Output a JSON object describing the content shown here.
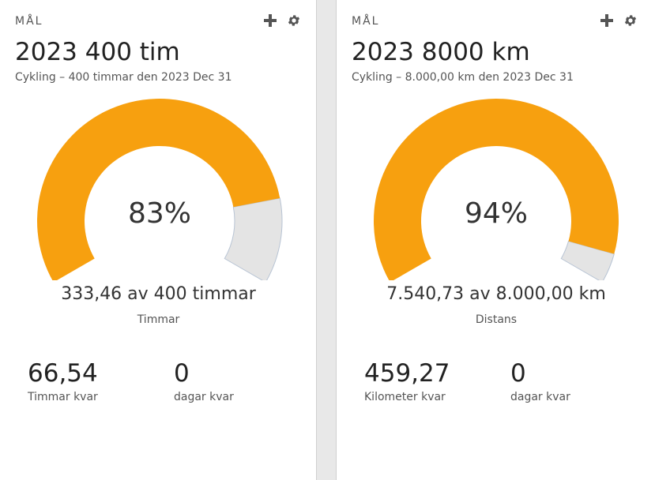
{
  "colors": {
    "fill": "#f7a00f",
    "remaining": "#e4e4e4",
    "remaining_stroke": "#b8c4d4"
  },
  "icons": {
    "add": "plus-icon",
    "settings": "gear-icon"
  },
  "goals": [
    {
      "section_label": "MÅL",
      "title": "2023 400 tim",
      "subtitle": "Cykling – 400 timmar den 2023 Dec 31",
      "percent_text": "83%",
      "progress_fraction": 0.83,
      "progress_text": "333,46 av 400 timmar",
      "unit_label": "Timmar",
      "remaining_value": "66,54",
      "remaining_label": "Timmar kvar",
      "days_value": "0",
      "days_label": "dagar kvar"
    },
    {
      "section_label": "MÅL",
      "title": "2023 8000 km",
      "subtitle": "Cykling – 8.000,00 km den 2023 Dec 31",
      "percent_text": "94%",
      "progress_fraction": 0.94,
      "progress_text": "7.540,73 av 8.000,00 km",
      "unit_label": "Distans",
      "remaining_value": "459,27",
      "remaining_label": "Kilometer kvar",
      "days_value": "0",
      "days_label": "dagar kvar"
    }
  ]
}
